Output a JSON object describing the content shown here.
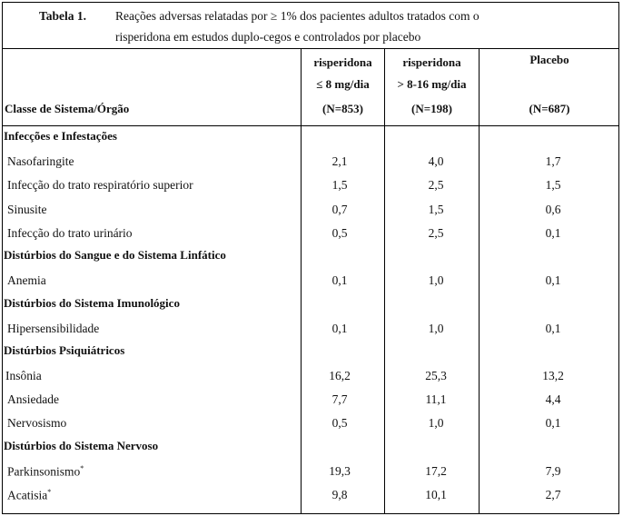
{
  "table": {
    "label": "Tabela 1.",
    "title_line1": "Reações adversas relatadas por ≥ 1% dos pacientes adultos tratados com o",
    "title_line2": "risperidona em estudos duplo-cegos e controlados por placebo",
    "col0": "Classe de Sistema/Órgão",
    "col1": [
      "risperidona",
      "≤ 8 mg/dia",
      "(N=853)"
    ],
    "col2": [
      "risperidona",
      "> 8-16 mg/dia",
      "(N=198)"
    ],
    "col3": [
      "Placebo",
      "(N=687)"
    ],
    "rows": [
      {
        "type": "cat",
        "name": "Infecções e Infestações"
      },
      {
        "type": "item",
        "name": "Nasofaringite",
        "v": [
          "2,1",
          "4,0",
          "1,7"
        ]
      },
      {
        "type": "item",
        "name": "Infecção do trato respiratório superior",
        "v": [
          "1,5",
          "2,5",
          "1,5"
        ]
      },
      {
        "type": "item",
        "name": "Sinusite",
        "v": [
          "0,7",
          "1,5",
          "0,6"
        ]
      },
      {
        "type": "item",
        "name": "Infecção do trato urinário",
        "v": [
          "0,5",
          "2,5",
          "0,1"
        ]
      },
      {
        "type": "cat",
        "name": "Distúrbios do Sangue e do Sistema Linfático"
      },
      {
        "type": "item",
        "name": "Anemia",
        "v": [
          "0,1",
          "1,0",
          "0,1"
        ]
      },
      {
        "type": "cat",
        "name": "Distúrbios do Sistema Imunológico"
      },
      {
        "type": "item",
        "name": "Hipersensibilidade",
        "v": [
          "0,1",
          "1,0",
          "0,1"
        ]
      },
      {
        "type": "cat",
        "name": "Distúrbios Psiquiátricos"
      },
      {
        "type": "item",
        "name": "Insônia",
        "v": [
          "16,2",
          "25,3",
          "13,2"
        ],
        "noindent": true
      },
      {
        "type": "item",
        "name": "Ansiedade",
        "v": [
          "7,7",
          "11,1",
          "4,4"
        ]
      },
      {
        "type": "item",
        "name": "Nervosismo",
        "v": [
          "0,5",
          "1,0",
          "0,1"
        ]
      },
      {
        "type": "cat",
        "name": "Distúrbios do Sistema Nervoso"
      },
      {
        "type": "item",
        "name": "Parkinsonismo",
        "sup": "*",
        "v": [
          "19,3",
          "17,2",
          "7,9"
        ]
      },
      {
        "type": "item",
        "name": "Acatisia",
        "sup": "*",
        "v": [
          "9,8",
          "10,1",
          "2,7"
        ]
      }
    ]
  }
}
